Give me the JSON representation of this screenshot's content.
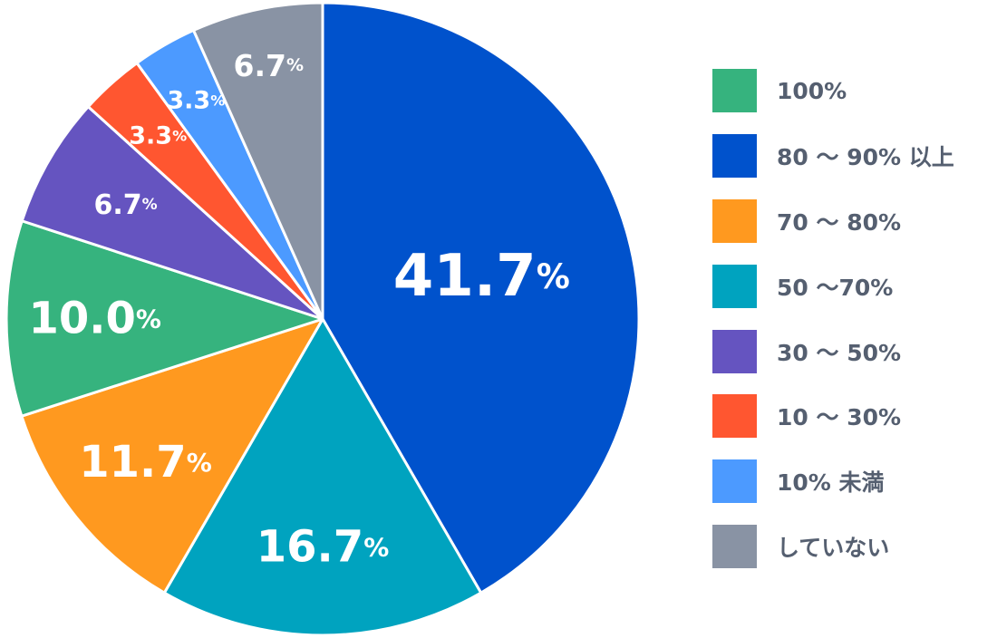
{
  "chart_data": {
    "type": "pie",
    "slices": [
      {
        "label": "80 ～ 90% 以上",
        "value": 41.7,
        "value_label": "41.7",
        "color": "#0052cc"
      },
      {
        "label": "50 ～70%",
        "value": 16.7,
        "value_label": "16.7",
        "color": "#00a3bf"
      },
      {
        "label": "70 ～ 80%",
        "value": 11.7,
        "value_label": "11.7",
        "color": "#ff991f"
      },
      {
        "label": "100%",
        "value": 10.0,
        "value_label": "10.0",
        "color": "#36b37e"
      },
      {
        "label": "30 ～ 50%",
        "value": 6.7,
        "value_label": "6.7",
        "color": "#6554c0"
      },
      {
        "label": "10 ～ 30%",
        "value": 3.3,
        "value_label": "3.3",
        "color": "#ff5630"
      },
      {
        "label": "10% 未満",
        "value": 3.3,
        "value_label": "3.3",
        "color": "#4c9aff"
      },
      {
        "label": "していない",
        "value": 6.7,
        "value_label": "6.7",
        "color": "#8993a4"
      }
    ],
    "percent_sign": "%",
    "legend": [
      {
        "label": "100%",
        "color": "#36b37e"
      },
      {
        "label": "80 ～ 90% 以上",
        "color": "#0052cc"
      },
      {
        "label": "70 ～ 80%",
        "color": "#ff991f"
      },
      {
        "label": "50 ～70%",
        "color": "#00a3bf"
      },
      {
        "label": "30 ～ 50%",
        "color": "#6554c0"
      },
      {
        "label": "10 ～ 30%",
        "color": "#ff5630"
      },
      {
        "label": "10% 未満",
        "color": "#4c9aff"
      },
      {
        "label": "していない",
        "color": "#8993a4"
      }
    ],
    "legend_position": "right"
  }
}
